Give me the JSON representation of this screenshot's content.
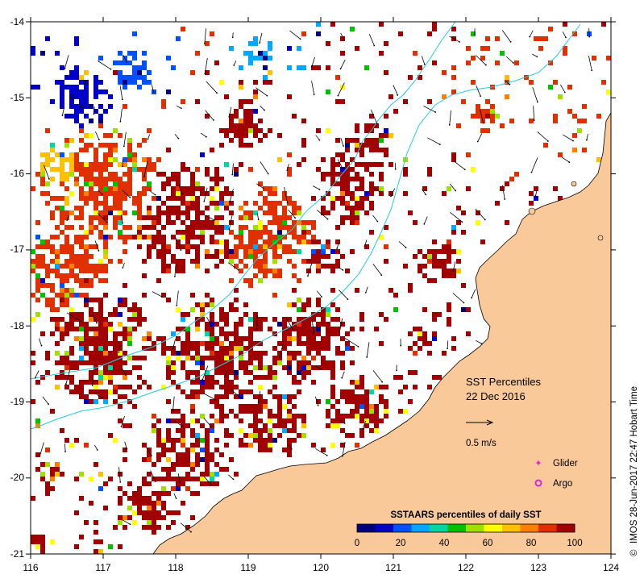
{
  "map": {
    "lon_ticks": [
      "116",
      "117",
      "118",
      "119",
      "120",
      "121",
      "122",
      "123",
      "124"
    ],
    "lat_ticks": [
      "-14",
      "-15",
      "-16",
      "-17",
      "-18",
      "-19",
      "-20",
      "-21"
    ],
    "land_color": "#f9c99a",
    "ocean_color": "#ffffff",
    "contour_color": "#1ecfe0",
    "text_color": "#000000"
  },
  "annotation": {
    "title": "SST Percentiles",
    "date": "22 Dec 2016",
    "vector_label": "0.5 m/s"
  },
  "legend": {
    "glider_label": "Glider",
    "argo_label": "Argo",
    "glider_color": "#e020e0",
    "argo_color": "#e020e0"
  },
  "colorbar": {
    "title": "SSTAARS percentiles of daily SST",
    "labels": [
      "0",
      "20",
      "40",
      "60",
      "80",
      "100"
    ],
    "colors": [
      "#00007f",
      "#0000c8",
      "#0050ff",
      "#00a8ff",
      "#00d7a0",
      "#00c000",
      "#a0e000",
      "#ffff00",
      "#ffc000",
      "#ff8000",
      "#e03000",
      "#a00000"
    ]
  },
  "credit": "IMOS 28-Jun-2017 22:47 Hobart Time",
  "credit_symbol": "©"
}
